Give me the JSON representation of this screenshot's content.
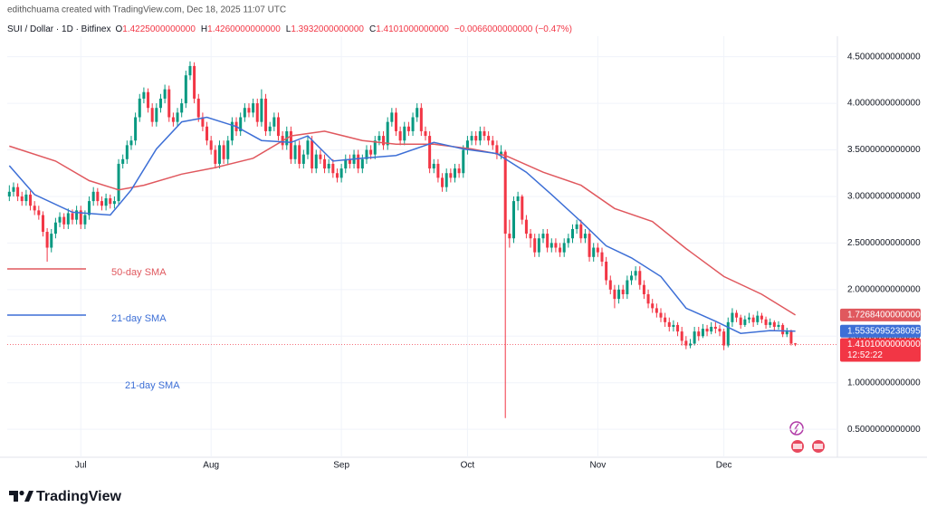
{
  "chart_data": {
    "type": "candlestick",
    "header": {
      "credit": "edithchuama created with TradingView.com, Dec 18, 2025 11:07 UTC",
      "symbol": "SUI / Dollar · 1D · Bitfinex",
      "ohlc": [
        {
          "key": "O",
          "value": "1.4225000000000"
        },
        {
          "key": "H",
          "value": "1.4260000000000"
        },
        {
          "key": "L",
          "value": "1.3932000000000"
        },
        {
          "key": "C",
          "value": "1.4101000000000"
        }
      ],
      "change": "−0.0066000000000 (−0.47%)"
    },
    "up_color": "#089981",
    "down_color": "#f23645",
    "grid": true,
    "xlim": [
      -0.5,
      197
    ],
    "xticks": [
      {
        "value": 17,
        "label": "Jul"
      },
      {
        "value": 48,
        "label": "Aug"
      },
      {
        "value": 79,
        "label": "Sep"
      },
      {
        "value": 109,
        "label": "Oct"
      },
      {
        "value": 140,
        "label": "Nov"
      },
      {
        "value": 170,
        "label": "Dec"
      }
    ],
    "ylim": [
      0.2,
      4.72
    ],
    "yticks": [
      {
        "value": 0.5,
        "label": "0.5000000000000"
      },
      {
        "value": 1.0,
        "label": "1.0000000000000"
      },
      {
        "value": 1.5,
        "label": "1.5000000000000"
      },
      {
        "value": 2.0,
        "label": "2.0000000000000"
      },
      {
        "value": 2.5,
        "label": "2.5000000000000"
      },
      {
        "value": 3.0,
        "label": "3.0000000000000"
      },
      {
        "value": 3.5,
        "label": "3.5000000000000"
      },
      {
        "value": 4.0,
        "label": "4.0000000000000"
      },
      {
        "value": 4.5,
        "label": "4.5000000000000"
      }
    ],
    "candles": [
      [
        3.0,
        3.12,
        2.95,
        3.05
      ],
      [
        3.05,
        3.15,
        3.0,
        3.1
      ],
      [
        3.1,
        3.14,
        2.95,
        3.0
      ],
      [
        3.0,
        3.05,
        2.9,
        2.95
      ],
      [
        2.95,
        3.07,
        2.9,
        3.02
      ],
      [
        3.02,
        3.06,
        2.85,
        2.9
      ],
      [
        2.9,
        2.95,
        2.8,
        2.85
      ],
      [
        2.85,
        2.9,
        2.75,
        2.8
      ],
      [
        2.8,
        2.84,
        2.57,
        2.62
      ],
      [
        2.62,
        2.66,
        2.3,
        2.45
      ],
      [
        2.45,
        2.65,
        2.4,
        2.6
      ],
      [
        2.6,
        2.77,
        2.55,
        2.72
      ],
      [
        2.72,
        2.83,
        2.67,
        2.78
      ],
      [
        2.78,
        2.82,
        2.65,
        2.7
      ],
      [
        2.7,
        2.87,
        2.65,
        2.82
      ],
      [
        2.82,
        2.86,
        2.7,
        2.75
      ],
      [
        2.75,
        2.9,
        2.7,
        2.85
      ],
      [
        2.85,
        2.9,
        2.65,
        2.7
      ],
      [
        2.7,
        2.85,
        2.65,
        2.8
      ],
      [
        2.8,
        3.0,
        2.75,
        2.95
      ],
      [
        2.95,
        3.1,
        2.9,
        3.05
      ],
      [
        3.05,
        3.09,
        2.9,
        2.95
      ],
      [
        2.95,
        3.0,
        2.85,
        2.9
      ],
      [
        2.9,
        3.03,
        2.85,
        2.98
      ],
      [
        2.98,
        3.02,
        2.87,
        2.92
      ],
      [
        2.92,
        3.0,
        2.87,
        2.95
      ],
      [
        2.95,
        3.4,
        2.9,
        3.35
      ],
      [
        3.35,
        3.45,
        3.3,
        3.4
      ],
      [
        3.4,
        3.6,
        3.35,
        3.55
      ],
      [
        3.55,
        3.65,
        3.5,
        3.6
      ],
      [
        3.6,
        3.9,
        3.55,
        3.85
      ],
      [
        3.85,
        4.1,
        3.8,
        4.05
      ],
      [
        4.05,
        4.17,
        4.0,
        4.12
      ],
      [
        4.12,
        4.16,
        3.9,
        3.95
      ],
      [
        3.95,
        4.0,
        3.75,
        3.8
      ],
      [
        3.8,
        4.0,
        3.75,
        3.95
      ],
      [
        3.95,
        4.1,
        3.9,
        4.05
      ],
      [
        4.05,
        4.2,
        4.0,
        4.15
      ],
      [
        4.15,
        4.19,
        3.8,
        3.85
      ],
      [
        3.85,
        3.9,
        3.75,
        3.8
      ],
      [
        3.8,
        3.95,
        3.75,
        3.9
      ],
      [
        3.9,
        4.05,
        3.85,
        4.0
      ],
      [
        4.0,
        4.35,
        3.95,
        4.3
      ],
      [
        4.3,
        4.45,
        4.25,
        4.4
      ],
      [
        4.4,
        4.44,
        4.0,
        4.05
      ],
      [
        4.05,
        4.1,
        3.8,
        3.85
      ],
      [
        3.85,
        3.9,
        3.7,
        3.75
      ],
      [
        3.75,
        3.8,
        3.55,
        3.6
      ],
      [
        3.6,
        3.65,
        3.45,
        3.5
      ],
      [
        3.5,
        3.55,
        3.3,
        3.35
      ],
      [
        3.35,
        3.6,
        3.3,
        3.55
      ],
      [
        3.55,
        3.6,
        3.35,
        3.4
      ],
      [
        3.4,
        3.65,
        3.35,
        3.6
      ],
      [
        3.6,
        3.85,
        3.55,
        3.8
      ],
      [
        3.8,
        3.85,
        3.65,
        3.7
      ],
      [
        3.7,
        3.9,
        3.65,
        3.85
      ],
      [
        3.85,
        4.0,
        3.8,
        3.95
      ],
      [
        3.95,
        4.0,
        3.85,
        3.9
      ],
      [
        3.9,
        4.05,
        3.85,
        4.0
      ],
      [
        4.0,
        4.05,
        3.75,
        3.8
      ],
      [
        3.8,
        4.15,
        3.75,
        4.05
      ],
      [
        4.05,
        4.1,
        3.65,
        3.7
      ],
      [
        3.7,
        3.8,
        3.65,
        3.75
      ],
      [
        3.75,
        3.9,
        3.7,
        3.85
      ],
      [
        3.85,
        3.9,
        3.6,
        3.65
      ],
      [
        3.65,
        3.7,
        3.5,
        3.55
      ],
      [
        3.55,
        3.75,
        3.5,
        3.7
      ],
      [
        3.7,
        3.75,
        3.35,
        3.4
      ],
      [
        3.4,
        3.6,
        3.35,
        3.55
      ],
      [
        3.55,
        3.6,
        3.3,
        3.35
      ],
      [
        3.35,
        3.5,
        3.3,
        3.45
      ],
      [
        3.45,
        3.65,
        3.4,
        3.6
      ],
      [
        3.6,
        3.65,
        3.25,
        3.3
      ],
      [
        3.3,
        3.5,
        3.25,
        3.45
      ],
      [
        3.45,
        3.5,
        3.35,
        3.4
      ],
      [
        3.4,
        3.45,
        3.25,
        3.3
      ],
      [
        3.3,
        3.4,
        3.25,
        3.35
      ],
      [
        3.35,
        3.4,
        3.2,
        3.25
      ],
      [
        3.25,
        3.3,
        3.15,
        3.2
      ],
      [
        3.2,
        3.35,
        3.15,
        3.3
      ],
      [
        3.3,
        3.45,
        3.25,
        3.4
      ],
      [
        3.4,
        3.45,
        3.3,
        3.35
      ],
      [
        3.35,
        3.5,
        3.3,
        3.45
      ],
      [
        3.45,
        3.5,
        3.25,
        3.3
      ],
      [
        3.3,
        3.45,
        3.25,
        3.4
      ],
      [
        3.4,
        3.55,
        3.35,
        3.5
      ],
      [
        3.5,
        3.55,
        3.4,
        3.45
      ],
      [
        3.45,
        3.65,
        3.4,
        3.6
      ],
      [
        3.6,
        3.7,
        3.55,
        3.65
      ],
      [
        3.65,
        3.7,
        3.5,
        3.55
      ],
      [
        3.55,
        3.85,
        3.5,
        3.8
      ],
      [
        3.8,
        3.95,
        3.75,
        3.9
      ],
      [
        3.9,
        3.95,
        3.65,
        3.7
      ],
      [
        3.7,
        3.75,
        3.55,
        3.6
      ],
      [
        3.6,
        3.8,
        3.55,
        3.75
      ],
      [
        3.75,
        3.8,
        3.65,
        3.7
      ],
      [
        3.7,
        3.9,
        3.65,
        3.85
      ],
      [
        3.85,
        4.0,
        3.8,
        3.95
      ],
      [
        3.95,
        4.0,
        3.65,
        3.7
      ],
      [
        3.7,
        3.75,
        3.6,
        3.65
      ],
      [
        3.65,
        3.7,
        3.25,
        3.3
      ],
      [
        3.3,
        3.4,
        3.25,
        3.35
      ],
      [
        3.35,
        3.4,
        3.15,
        3.2
      ],
      [
        3.2,
        3.25,
        3.05,
        3.1
      ],
      [
        3.1,
        3.3,
        3.05,
        3.25
      ],
      [
        3.25,
        3.3,
        3.15,
        3.2
      ],
      [
        3.2,
        3.35,
        3.15,
        3.3
      ],
      [
        3.3,
        3.35,
        3.2,
        3.25
      ],
      [
        3.25,
        3.55,
        3.2,
        3.5
      ],
      [
        3.5,
        3.65,
        3.45,
        3.6
      ],
      [
        3.6,
        3.7,
        3.55,
        3.65
      ],
      [
        3.65,
        3.7,
        3.55,
        3.6
      ],
      [
        3.6,
        3.75,
        3.55,
        3.7
      ],
      [
        3.7,
        3.75,
        3.6,
        3.65
      ],
      [
        3.65,
        3.7,
        3.55,
        3.6
      ],
      [
        3.6,
        3.65,
        3.5,
        3.55
      ],
      [
        3.55,
        3.6,
        3.4,
        3.45
      ],
      [
        3.45,
        3.55,
        3.4,
        3.48
      ],
      [
        3.48,
        3.5,
        0.62,
        2.6
      ],
      [
        2.6,
        2.75,
        2.45,
        2.55
      ],
      [
        2.55,
        3.0,
        2.5,
        2.95
      ],
      [
        2.95,
        3.05,
        2.85,
        3.0
      ],
      [
        3.0,
        3.02,
        2.7,
        2.75
      ],
      [
        2.75,
        2.8,
        2.55,
        2.6
      ],
      [
        2.6,
        2.65,
        2.45,
        2.55
      ],
      [
        2.55,
        2.6,
        2.35,
        2.4
      ],
      [
        2.4,
        2.6,
        2.35,
        2.55
      ],
      [
        2.55,
        2.65,
        2.5,
        2.6
      ],
      [
        2.6,
        2.65,
        2.4,
        2.45
      ],
      [
        2.45,
        2.55,
        2.4,
        2.5
      ],
      [
        2.5,
        2.55,
        2.4,
        2.45
      ],
      [
        2.45,
        2.5,
        2.35,
        2.4
      ],
      [
        2.4,
        2.55,
        2.35,
        2.5
      ],
      [
        2.5,
        2.6,
        2.45,
        2.55
      ],
      [
        2.55,
        2.7,
        2.5,
        2.65
      ],
      [
        2.65,
        2.75,
        2.6,
        2.7
      ],
      [
        2.7,
        2.75,
        2.5,
        2.55
      ],
      [
        2.55,
        2.65,
        2.5,
        2.6
      ],
      [
        2.6,
        2.65,
        2.3,
        2.35
      ],
      [
        2.35,
        2.5,
        2.3,
        2.45
      ],
      [
        2.45,
        2.5,
        2.35,
        2.4
      ],
      [
        2.4,
        2.45,
        2.25,
        2.3
      ],
      [
        2.3,
        2.35,
        2.05,
        2.1
      ],
      [
        2.1,
        2.15,
        1.95,
        2.0
      ],
      [
        2.0,
        2.05,
        1.8,
        1.9
      ],
      [
        1.9,
        2.05,
        1.85,
        2.0
      ],
      [
        2.0,
        2.05,
        1.9,
        1.95
      ],
      [
        1.95,
        2.15,
        1.9,
        2.1
      ],
      [
        2.1,
        2.2,
        2.05,
        2.15
      ],
      [
        2.15,
        2.25,
        2.1,
        2.2
      ],
      [
        2.2,
        2.25,
        2.0,
        2.05
      ],
      [
        2.05,
        2.1,
        1.9,
        1.95
      ],
      [
        1.95,
        2.0,
        1.8,
        1.85
      ],
      [
        1.85,
        1.9,
        1.75,
        1.8
      ],
      [
        1.8,
        1.85,
        1.7,
        1.75
      ],
      [
        1.75,
        1.8,
        1.65,
        1.7
      ],
      [
        1.7,
        1.75,
        1.6,
        1.65
      ],
      [
        1.65,
        1.7,
        1.55,
        1.6
      ],
      [
        1.6,
        1.67,
        1.55,
        1.62
      ],
      [
        1.62,
        1.65,
        1.5,
        1.55
      ],
      [
        1.55,
        1.6,
        1.4,
        1.45
      ],
      [
        1.45,
        1.5,
        1.36,
        1.4
      ],
      [
        1.4,
        1.47,
        1.37,
        1.42
      ],
      [
        1.42,
        1.6,
        1.4,
        1.55
      ],
      [
        1.55,
        1.6,
        1.45,
        1.5
      ],
      [
        1.5,
        1.63,
        1.48,
        1.58
      ],
      [
        1.58,
        1.62,
        1.5,
        1.55
      ],
      [
        1.55,
        1.65,
        1.52,
        1.6
      ],
      [
        1.6,
        1.65,
        1.53,
        1.58
      ],
      [
        1.58,
        1.62,
        1.5,
        1.55
      ],
      [
        1.55,
        1.58,
        1.35,
        1.4
      ],
      [
        1.4,
        1.7,
        1.38,
        1.65
      ],
      [
        1.65,
        1.8,
        1.6,
        1.75
      ],
      [
        1.75,
        1.78,
        1.65,
        1.7
      ],
      [
        1.7,
        1.73,
        1.58,
        1.62
      ],
      [
        1.62,
        1.72,
        1.6,
        1.68
      ],
      [
        1.68,
        1.75,
        1.64,
        1.7
      ],
      [
        1.7,
        1.73,
        1.6,
        1.65
      ],
      [
        1.65,
        1.77,
        1.62,
        1.72
      ],
      [
        1.72,
        1.75,
        1.64,
        1.68
      ],
      [
        1.68,
        1.71,
        1.58,
        1.62
      ],
      [
        1.62,
        1.69,
        1.59,
        1.65
      ],
      [
        1.65,
        1.67,
        1.56,
        1.6
      ],
      [
        1.6,
        1.66,
        1.57,
        1.62
      ],
      [
        1.62,
        1.64,
        1.49,
        1.52
      ],
      [
        1.52,
        1.59,
        1.49,
        1.55
      ],
      [
        1.55,
        1.57,
        1.4,
        1.42
      ],
      [
        1.4225,
        1.426,
        1.3932,
        1.4101
      ]
    ],
    "last_price_label": "1.4101000000000",
    "countdown": "12:52:22",
    "series": [
      {
        "name": "50-day SMA",
        "color": "#e0585e",
        "price_label": "1.7268400000000",
        "x": [
          0,
          11,
          19,
          26,
          32,
          41,
          49,
          58,
          67,
          75,
          84,
          92,
          101,
          110,
          118,
          127,
          136,
          144,
          153,
          161,
          170,
          179,
          187
        ],
        "values": [
          3.54,
          3.38,
          3.17,
          3.07,
          3.12,
          3.24,
          3.31,
          3.41,
          3.65,
          3.7,
          3.6,
          3.56,
          3.56,
          3.51,
          3.44,
          3.26,
          3.12,
          2.87,
          2.73,
          2.44,
          2.14,
          1.95,
          1.72684
        ]
      },
      {
        "name": "21-day SMA",
        "color": "#3d6fd6",
        "price_label": "1.5535095238095",
        "x": [
          0,
          6,
          15,
          24,
          29,
          35,
          41,
          47,
          54,
          60,
          67,
          71,
          77,
          84,
          92,
          101,
          108,
          116,
          123,
          129,
          136,
          142,
          148,
          155,
          161,
          168,
          174,
          181,
          187
        ],
        "values": [
          3.33,
          3.02,
          2.83,
          2.8,
          3.07,
          3.51,
          3.8,
          3.85,
          3.75,
          3.6,
          3.58,
          3.65,
          3.38,
          3.41,
          3.44,
          3.58,
          3.51,
          3.46,
          3.26,
          3.02,
          2.73,
          2.47,
          2.34,
          2.14,
          1.8,
          1.66,
          1.53,
          1.56,
          1.5535095238095
        ]
      }
    ],
    "annotations": [
      "21-day SMA"
    ],
    "brand": "TradingView"
  }
}
